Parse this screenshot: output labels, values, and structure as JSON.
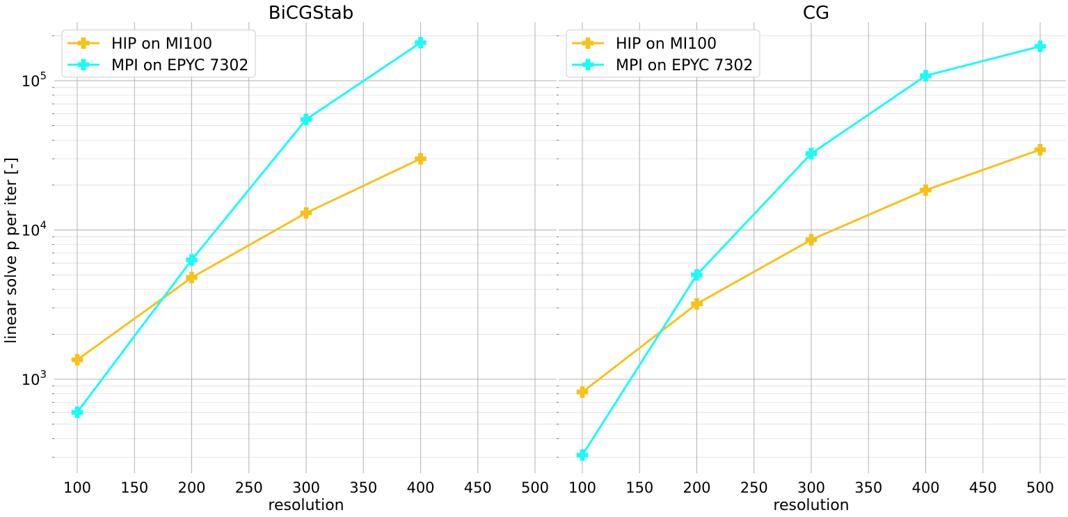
{
  "figure": {
    "ylabel": "linear solve p per iter [-]"
  },
  "chart_data": [
    {
      "type": "line",
      "title": "BiCGStab",
      "xlabel": "resolution",
      "ylabel": "linear solve p per iter [-]",
      "yscale": "log",
      "xlim": [
        80,
        520
      ],
      "ylim": [
        250,
        240000
      ],
      "xticks": [
        100,
        150,
        200,
        250,
        300,
        350,
        400,
        450,
        500
      ],
      "yticks": [
        {
          "value": 1000,
          "base": "10",
          "exp": "3"
        },
        {
          "value": 10000,
          "base": "10",
          "exp": "4"
        },
        {
          "value": 100000,
          "base": "10",
          "exp": "5"
        }
      ],
      "grid": true,
      "legend": "top-left",
      "series": [
        {
          "name": "HIP on MI100",
          "color": "#f8c118",
          "x": [
            100,
            200,
            300,
            400
          ],
          "y": [
            1350,
            4800,
            13000,
            30000
          ]
        },
        {
          "name": "MPI on EPYC 7302",
          "color": "#19fbfb",
          "x": [
            100,
            200,
            300,
            400
          ],
          "y": [
            600,
            6300,
            55000,
            180000
          ]
        }
      ]
    },
    {
      "type": "line",
      "title": "CG",
      "xlabel": "resolution",
      "yscale": "log",
      "xlim": [
        80,
        520
      ],
      "ylim": [
        250,
        240000
      ],
      "xticks": [
        100,
        150,
        200,
        250,
        300,
        350,
        400,
        450,
        500
      ],
      "grid": true,
      "legend": "top-left",
      "series": [
        {
          "name": "HIP on MI100",
          "color": "#f8c118",
          "x": [
            100,
            200,
            300,
            400,
            500
          ],
          "y": [
            820,
            3200,
            8600,
            18500,
            34500
          ]
        },
        {
          "name": "MPI on EPYC 7302",
          "color": "#19fbfb",
          "x": [
            100,
            200,
            300,
            400,
            500
          ],
          "y": [
            310,
            5000,
            32500,
            108000,
            170000
          ]
        }
      ]
    }
  ]
}
